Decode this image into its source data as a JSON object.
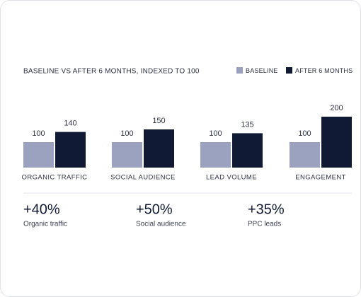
{
  "chart_data": {
    "type": "bar",
    "title": "BASELINE VS AFTER 6 MONTHS, INDEXED TO 100",
    "categories": [
      "ORGANIC TRAFFIC",
      "SOCIAL AUDIENCE",
      "LEAD VOLUME",
      "ENGAGEMENT"
    ],
    "series": [
      {
        "name": "BASELINE",
        "color": "#9aa2c0",
        "values": [
          100,
          100,
          100,
          100
        ]
      },
      {
        "name": "AFTER 6 MONTHS",
        "color": "#111a35",
        "values": [
          140,
          150,
          135,
          200
        ]
      }
    ],
    "legend": "top-right"
  },
  "stats": [
    {
      "value": "+40%",
      "label": "Organic traffic"
    },
    {
      "value": "+50%",
      "label": "Social audience"
    },
    {
      "value": "+35%",
      "label": "PPC leads"
    }
  ]
}
